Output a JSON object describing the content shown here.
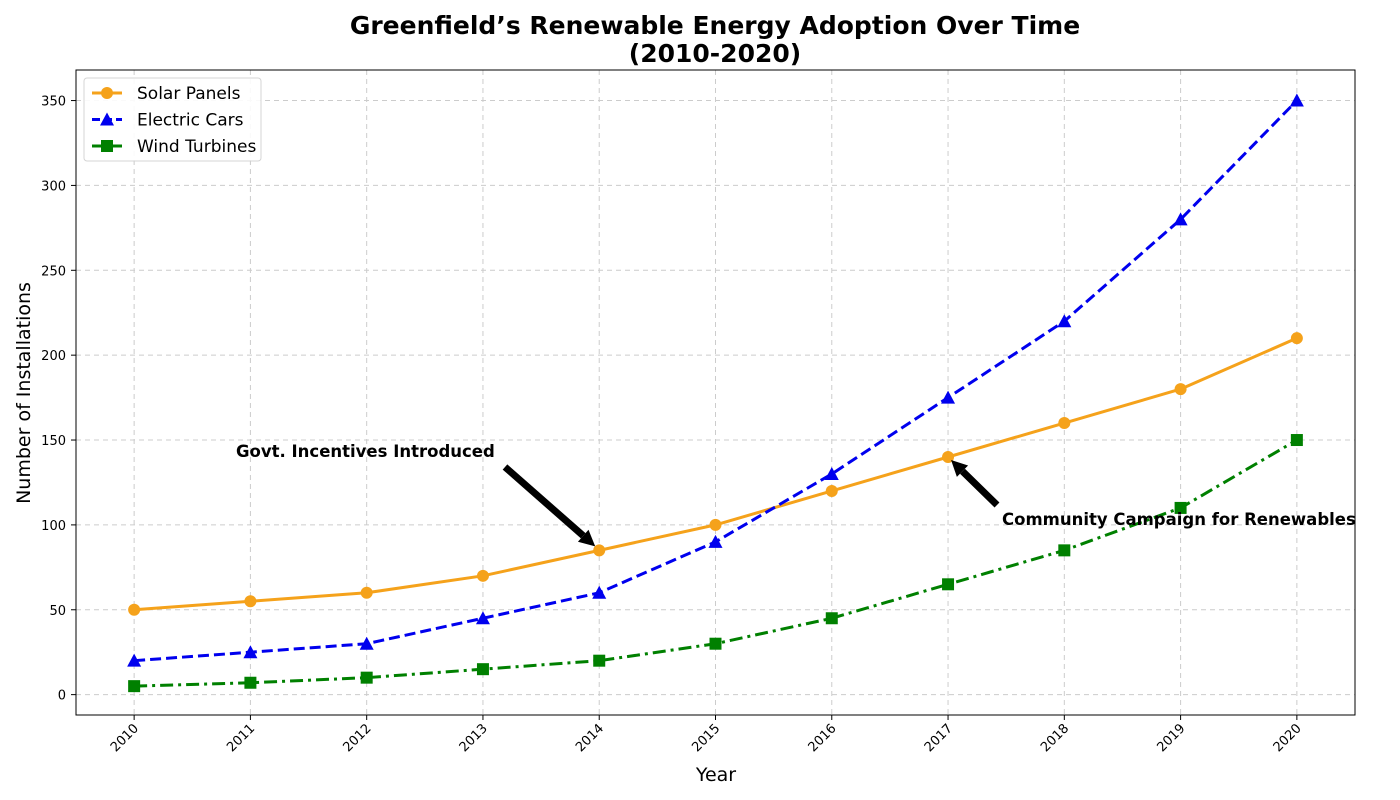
{
  "chart_data": {
    "type": "line",
    "title": "Greenfield’s Renewable Energy Adoption Over Time",
    "subtitle": "(2010-2020)",
    "xlabel": "Year",
    "ylabel": "Number of Installations",
    "x": [
      "2010",
      "2011",
      "2012",
      "2013",
      "2014",
      "2015",
      "2016",
      "2017",
      "2018",
      "2019",
      "2020"
    ],
    "xlim": [
      2009.5,
      2020.5
    ],
    "ylim": [
      -12,
      368
    ],
    "yticks": [
      0,
      50,
      100,
      150,
      200,
      250,
      300,
      350
    ],
    "grid": true,
    "legend_position": "top-left",
    "series": [
      {
        "name": "Solar Panels",
        "color": "#f5a21b",
        "marker": "circle",
        "line_style": "solid",
        "values": [
          50,
          55,
          60,
          70,
          85,
          100,
          120,
          140,
          160,
          180,
          210
        ]
      },
      {
        "name": "Electric Cars",
        "color": "#0000ee",
        "marker": "triangle",
        "line_style": "dashed",
        "values": [
          20,
          25,
          30,
          45,
          60,
          90,
          130,
          175,
          220,
          280,
          350
        ]
      },
      {
        "name": "Wind Turbines",
        "color": "#008000",
        "marker": "square",
        "line_style": "dashdot",
        "values": [
          5,
          7,
          10,
          15,
          20,
          30,
          45,
          65,
          85,
          110,
          150
        ]
      }
    ],
    "annotations": [
      {
        "text": "Govt. Incentives Introduced",
        "x": 2014,
        "y": 85
      },
      {
        "text": "Community Campaign for Renewables",
        "x": 2017,
        "y": 140
      }
    ]
  }
}
